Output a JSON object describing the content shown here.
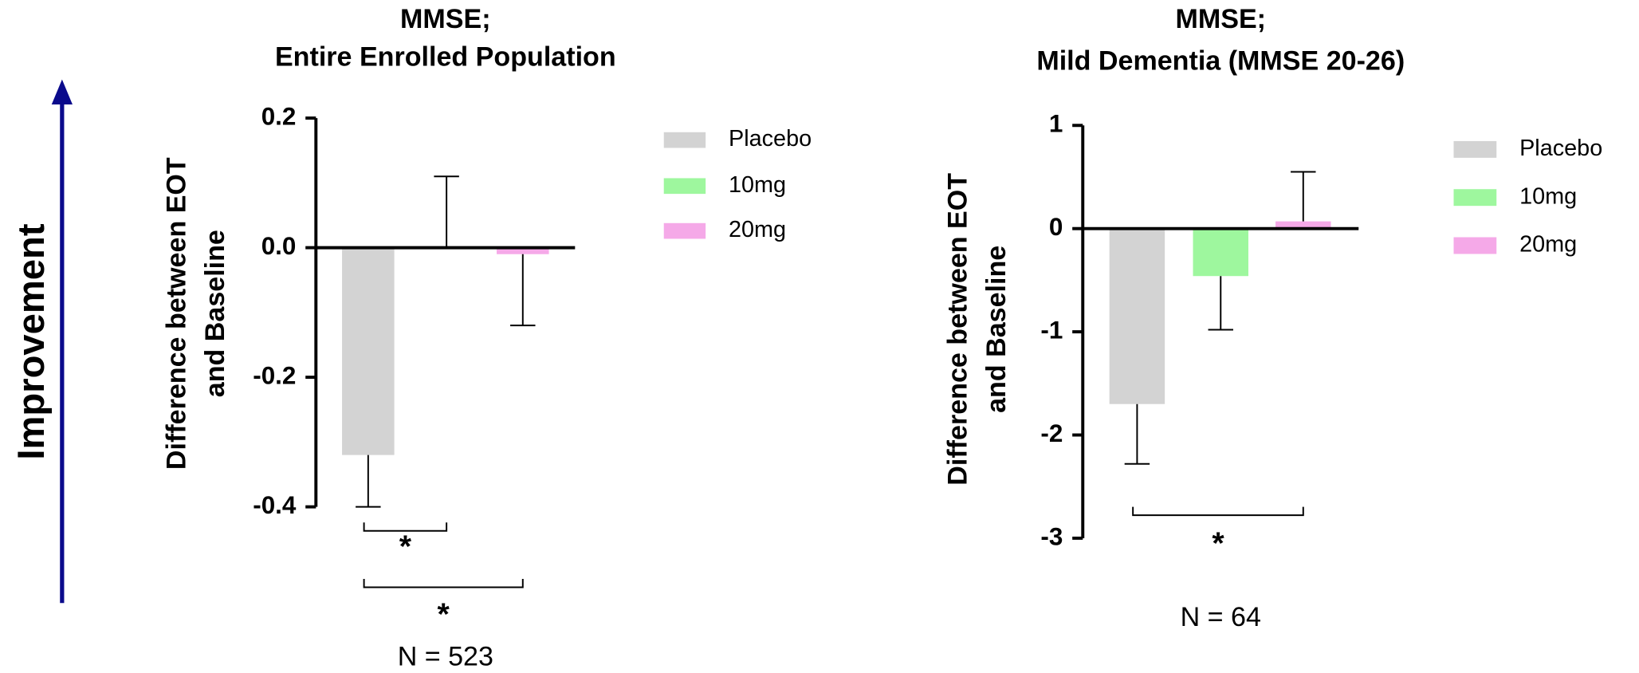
{
  "side_label": "Improvement",
  "chart_data": [
    {
      "type": "bar",
      "title": [
        "MMSE;",
        "Entire  Enrolled Population"
      ],
      "ylabel": [
        "Difference between EOT",
        "and Baseline"
      ],
      "ylim": [
        -0.4,
        0.2
      ],
      "yticks": [
        0.2,
        {
          "value": 0,
          "label": "0.0"
        },
        -0.2,
        -0.4
      ],
      "series": [
        {
          "name": "Placebo",
          "color": "#d3d3d3",
          "values": [
            -0.32
          ],
          "errors": [
            0.08
          ]
        },
        {
          "name": "10mg",
          "color": "#9ef79e",
          "values": [
            0
          ],
          "errors": [
            0.11
          ]
        },
        {
          "name": "20mg",
          "color": "#f5a9e8",
          "values": [
            -0.01
          ],
          "errors": [
            0.11
          ]
        }
      ],
      "significance": [
        {
          "label": "*",
          "between": [
            "Placebo",
            "10mg"
          ]
        },
        {
          "label": "*",
          "between": [
            "Placebo",
            "20mg"
          ]
        }
      ],
      "note": "N = 523"
    },
    {
      "type": "bar",
      "title": [
        "MMSE;",
        "Mild Dementia (MMSE 20-26)"
      ],
      "ylabel": [
        "Difference between EOT",
        "and Baseline"
      ],
      "ylim": [
        -3,
        1
      ],
      "yticks": [
        1,
        0,
        -1,
        -2,
        -3
      ],
      "series": [
        {
          "name": "Placebo",
          "color": "#d3d3d3",
          "values": [
            -1.7
          ],
          "errors": [
            0.58
          ]
        },
        {
          "name": "10mg",
          "color": "#9ef79e",
          "values": [
            -0.46
          ],
          "errors": [
            0.52
          ]
        },
        {
          "name": "20mg",
          "color": "#f5a9e8",
          "values": [
            0.07
          ],
          "errors": [
            0.48
          ]
        }
      ],
      "significance": [
        {
          "label": "*",
          "between": [
            "Placebo",
            "20mg"
          ]
        }
      ],
      "note": "N = 64"
    }
  ]
}
